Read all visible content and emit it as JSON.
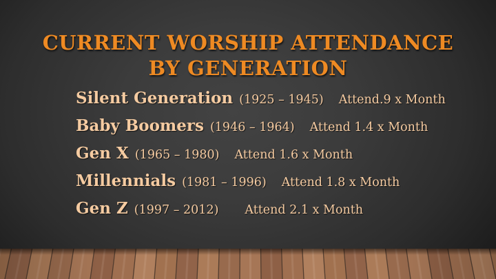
{
  "slide": {
    "title": {
      "line1": "CURRENT WORSHIP ATTENDANCE",
      "line2": "BY GENERATION"
    },
    "rows": [
      {
        "name": "Silent Generation",
        "years": "(1925 – 1945)",
        "attend": "Attend.9 x Month"
      },
      {
        "name": "Baby Boomers",
        "years": "(1946 – 1964)",
        "attend": "Attend 1.4 x Month"
      },
      {
        "name": "Gen X",
        "years": "(1965 – 1980)",
        "attend": "Attend 1.6 x Month"
      },
      {
        "name": "Millennials",
        "years": "(1981 – 1996)",
        "attend": "Attend 1.8 x Month"
      },
      {
        "name": "Gen Z",
        "years": "(1997 – 2012)",
        "attend": "Attend 2.1 x Month"
      }
    ],
    "colors": {
      "title_orange": "#EE8A23",
      "body_peach": "#F5CBA1",
      "wall_center": "#3E3E3E",
      "wall_corner": "#0B0B0B",
      "floor_wood": "#A1714F",
      "floor_seam": "#4B382C"
    }
  }
}
